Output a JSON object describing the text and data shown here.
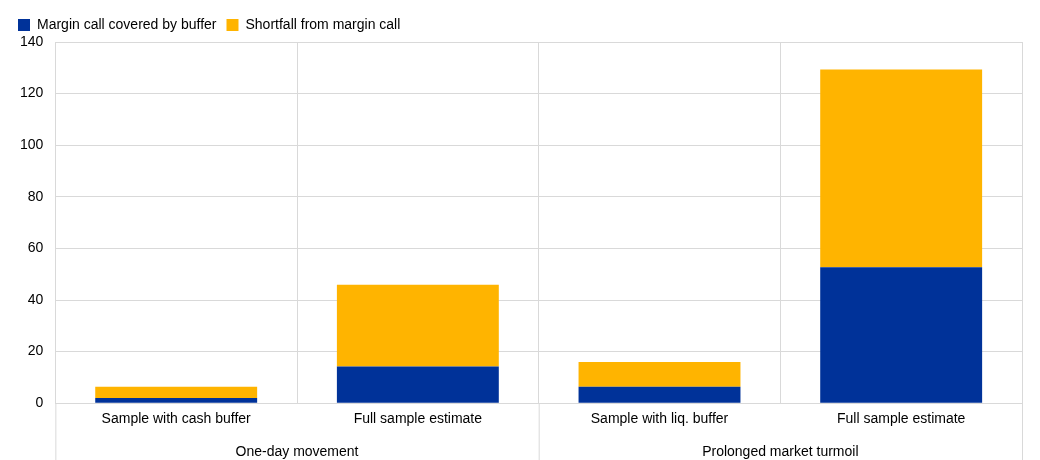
{
  "chart_data": {
    "type": "bar",
    "stacked": true,
    "categories": [
      "Sample with cash buffer",
      "Full sample estimate",
      "Sample with liq. buffer",
      "Full sample estimate"
    ],
    "series": [
      {
        "name": "Margin call covered by buffer",
        "color": "#003299",
        "values": [
          2.0,
          14.2,
          6.4,
          52.7
        ]
      },
      {
        "name": "Shortfall from margin call",
        "color": "#ffb400",
        "values": [
          4.4,
          31.7,
          9.6,
          76.6
        ]
      }
    ],
    "annotations": [
      "One-day movement",
      "Prolonged market turmoil"
    ],
    "ylim": [
      0,
      140
    ],
    "yticks": [
      0,
      20,
      40,
      60,
      80,
      100,
      120,
      140
    ],
    "grid": true,
    "legend": "top left"
  }
}
